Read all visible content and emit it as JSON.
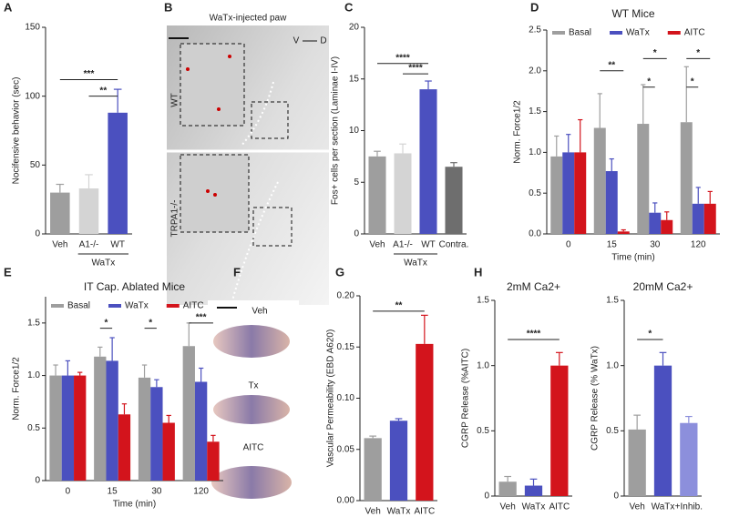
{
  "panel_letters": [
    "A",
    "B",
    "C",
    "D",
    "E",
    "F",
    "G",
    "H"
  ],
  "images": {
    "b_title": "WaTx-injected paw",
    "b_v": "V",
    "b_d": "D",
    "b_wt": "WT",
    "b_trpa1": "TRPA1-/-",
    "g_photos": [
      "Veh",
      "Tx",
      "AITC"
    ]
  },
  "chart_data": [
    {
      "type": "bar",
      "ylabel": "Nocifensive behavior (sec)",
      "categories": [
        "Veh",
        "A1-/-",
        "WT"
      ],
      "group_label": "WaTx",
      "values": [
        30,
        33,
        88
      ],
      "errors": [
        6,
        10,
        17
      ],
      "colors": [
        "#9e9e9e",
        "#d4d4d4",
        "#4b50bf"
      ],
      "ylim": [
        0,
        150
      ],
      "yticks": [
        0,
        50,
        100,
        150
      ],
      "annotations": [
        "***",
        "**"
      ]
    },
    {
      "type": "bar",
      "ylabel": "Fos+ cells per section (Laminae I-IV)",
      "categories": [
        "Veh",
        "A1-/-",
        "WT",
        "Contra."
      ],
      "group_label": "WaTx",
      "values": [
        7.5,
        7.8,
        14,
        6.5
      ],
      "errors": [
        0.5,
        0.9,
        0.8,
        0.4
      ],
      "colors": [
        "#9e9e9e",
        "#d4d4d4",
        "#4b50bf",
        "#6e6e6e"
      ],
      "ylim": [
        0,
        20
      ],
      "yticks": [
        0,
        5,
        10,
        15,
        20
      ],
      "annotations": [
        "****",
        "****"
      ]
    },
    {
      "type": "grouped-bar",
      "title": "WT Mice",
      "ylabel": "Norm. Force1/2",
      "xlabel": "Time (min)",
      "categories": [
        "0",
        "15",
        "30",
        "120"
      ],
      "series": [
        {
          "name": "Basal",
          "color": "#9e9e9e",
          "values": [
            0.95,
            1.3,
            1.35,
            1.37
          ],
          "errors": [
            0.25,
            0.42,
            0.48,
            0.68
          ]
        },
        {
          "name": "WaTx",
          "color": "#4b50bf",
          "values": [
            1.0,
            0.77,
            0.26,
            0.37
          ],
          "errors": [
            0.22,
            0.15,
            0.12,
            0.2
          ]
        },
        {
          "name": "AITC",
          "color": "#d3141c",
          "values": [
            1.0,
            0.03,
            0.17,
            0.37
          ],
          "errors": [
            0.4,
            0.02,
            0.1,
            0.15
          ]
        }
      ],
      "ylim": [
        0,
        2.5
      ],
      "yticks": [
        {
          "value": 0,
          "label": "0.0"
        },
        0.5,
        {
          "value": 1,
          "label": "1.0"
        },
        1.5,
        {
          "value": 2,
          "label": "2.0"
        },
        2.5
      ],
      "annotations": [
        "**",
        "*",
        "*",
        "*",
        "*"
      ]
    },
    {
      "type": "grouped-bar",
      "title": "IT Cap. Ablated Mice",
      "ylabel": "Norm. Force1/2",
      "xlabel": "Time (min)",
      "categories": [
        "0",
        "15",
        "30",
        "120"
      ],
      "series": [
        {
          "name": "Basal",
          "color": "#9e9e9e",
          "values": [
            1.0,
            1.18,
            0.98,
            1.28
          ],
          "errors": [
            0.1,
            0.09,
            0.12,
            0.22
          ]
        },
        {
          "name": "WaTx",
          "color": "#4b50bf",
          "values": [
            1.0,
            1.14,
            0.89,
            0.94
          ],
          "errors": [
            0.14,
            0.22,
            0.07,
            0.13
          ]
        },
        {
          "name": "AITC",
          "color": "#d3141c",
          "values": [
            1.0,
            0.63,
            0.55,
            0.37
          ],
          "errors": [
            0.03,
            0.1,
            0.07,
            0.06
          ]
        }
      ],
      "ylim": [
        0,
        1.75
      ],
      "yticks": [
        0,
        0.5,
        {
          "value": 1,
          "label": "1.0"
        },
        1.5
      ],
      "annotations": [
        "*",
        "*",
        "***"
      ]
    },
    {
      "type": "bar",
      "ylabel": "Vascular Permeability (EBD A620)",
      "categories": [
        "Veh",
        "WaTx",
        "AITC"
      ],
      "values": [
        0.061,
        0.078,
        0.153
      ],
      "errors": [
        0.002,
        0.002,
        0.028
      ],
      "colors": [
        "#9e9e9e",
        "#4b50bf",
        "#d3141c"
      ],
      "ylim": [
        0,
        0.2
      ],
      "yticks": [
        {
          "value": 0,
          "label": "0.00"
        },
        0.05,
        {
          "value": 0.1,
          "label": "0.10"
        },
        0.15,
        {
          "value": 0.2,
          "label": "0.20"
        }
      ],
      "annotations": [
        "**"
      ]
    },
    {
      "type": "bar",
      "title": "2mM Ca2+",
      "ylabel": "CGRP Release (%AITC)",
      "categories": [
        "Veh",
        "WaTx",
        "AITC"
      ],
      "values": [
        0.11,
        0.08,
        1.0
      ],
      "errors": [
        0.04,
        0.05,
        0.1
      ],
      "colors": [
        "#9e9e9e",
        "#4b50bf",
        "#d3141c"
      ],
      "ylim": [
        0,
        1.5
      ],
      "yticks": [
        0,
        0.5,
        {
          "value": 1,
          "label": "1.0"
        },
        1.5
      ],
      "annotations": [
        "****"
      ]
    },
    {
      "type": "bar",
      "title": "20mM Ca2+",
      "ylabel": "CGRP Release (% WaTx)",
      "categories": [
        "Veh",
        "WaTx",
        "+Inhib."
      ],
      "values": [
        0.51,
        1.0,
        0.56
      ],
      "errors": [
        0.11,
        0.1,
        0.05
      ],
      "colors": [
        "#9e9e9e",
        "#4b50bf",
        "#8c8fdc"
      ],
      "ylim": [
        0,
        1.5
      ],
      "yticks": [
        0,
        0.5,
        {
          "value": 1,
          "label": "1.0"
        },
        1.5
      ],
      "annotations": [
        "*"
      ]
    }
  ]
}
